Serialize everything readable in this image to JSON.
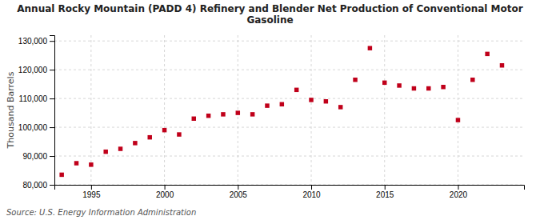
{
  "chart_data": {
    "type": "scatter",
    "title": "Annual Rocky Mountain (PADD 4) Refinery and Blender Net Production of Conventional Motor\nGasoline",
    "ylabel": "Thousand Barrels",
    "source": "Source: U.S. Energy Information Administration",
    "color": "#c0001a",
    "marker": "square",
    "grid": true,
    "x": [
      1993,
      1994,
      1995,
      1996,
      1997,
      1998,
      1999,
      2000,
      2001,
      2002,
      2003,
      2004,
      2005,
      2006,
      2007,
      2008,
      2009,
      2010,
      2011,
      2012,
      2013,
      2014,
      2015,
      2016,
      2017,
      2018,
      2019,
      2020,
      2021,
      2022,
      2023
    ],
    "values": [
      83500,
      87500,
      87000,
      91500,
      92500,
      94500,
      96500,
      99000,
      97500,
      103000,
      104000,
      104500,
      105000,
      104500,
      107500,
      108000,
      113000,
      109500,
      109000,
      107000,
      116500,
      127500,
      115500,
      114500,
      113500,
      113500,
      114000,
      102500,
      116500,
      125500,
      121500
    ],
    "xlim": [
      1992.5,
      2024.5
    ],
    "xticks": [
      1995,
      2000,
      2005,
      2010,
      2015,
      2020
    ],
    "ylim": [
      80000,
      132000
    ],
    "yticks": [
      {
        "value": 80000,
        "label": "80,000"
      },
      {
        "value": 90000,
        "label": "90,000"
      },
      {
        "value": 100000,
        "label": "100,000"
      },
      {
        "value": 110000,
        "label": "110,000"
      },
      {
        "value": 120000,
        "label": "120,000"
      },
      {
        "value": 130000,
        "label": "130,000"
      }
    ]
  }
}
